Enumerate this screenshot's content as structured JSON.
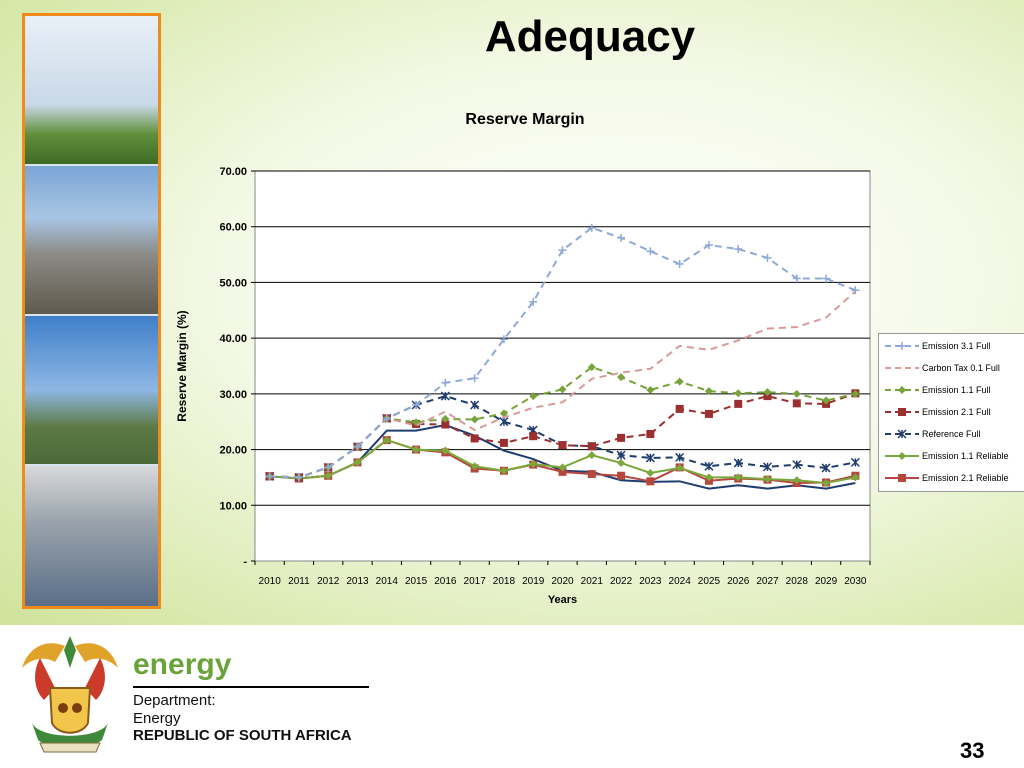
{
  "slide": {
    "title": "Adequacy",
    "page_number": "33"
  },
  "logo": {
    "brand": "energy",
    "department_label": "Department:",
    "department_name": "Energy",
    "country": "REPUBLIC OF SOUTH AFRICA"
  },
  "colors": {
    "emission31": "#8ea9d8",
    "carbontax": "#d99a9a",
    "emission11full": "#77a33a",
    "emission21full": "#9c2f2f",
    "reference": "#1f3d6e",
    "emission11rel": "#7aa83a",
    "emission21rel": "#b5473f",
    "frame_orange": "#f08a1c"
  },
  "chart_data": {
    "type": "line",
    "title": "Reserve Margin",
    "xlabel": "Years",
    "ylabel": "Reserve Margin (%)",
    "ylim": [
      0,
      70
    ],
    "yticks": [
      "-",
      "10.00",
      "20.00",
      "30.00",
      "40.00",
      "50.00",
      "60.00",
      "70.00"
    ],
    "grid": true,
    "legend_position": "right",
    "categories": [
      "2010",
      "2011",
      "2012",
      "2013",
      "2014",
      "2015",
      "2016",
      "2017",
      "2018",
      "2019",
      "2020",
      "2021",
      "2022",
      "2023",
      "2024",
      "2025",
      "2026",
      "2027",
      "2028",
      "2029",
      "2030"
    ],
    "series": [
      {
        "name": "Emission 3.1 Full",
        "color": "#8ea9d8",
        "dash": "dash",
        "marker": "plus",
        "values": [
          15.2,
          15.0,
          16.8,
          20.5,
          25.6,
          28.0,
          32.0,
          32.8,
          39.8,
          46.5,
          55.8,
          59.8,
          58.0,
          55.6,
          53.3,
          56.7,
          56.0,
          54.4,
          50.7,
          50.7,
          48.6
        ]
      },
      {
        "name": "Carbon Tax 0.1 Full",
        "color": "#d99a9a",
        "dash": "dash",
        "marker": "none",
        "values": [
          15.2,
          15.0,
          16.8,
          20.5,
          25.6,
          24.3,
          26.8,
          23.5,
          25.8,
          27.5,
          28.5,
          32.7,
          33.8,
          34.5,
          38.6,
          37.9,
          39.6,
          41.7,
          42.0,
          43.7,
          48.4
        ]
      },
      {
        "name": "Emission 1.1 Full",
        "color": "#77a33a",
        "dash": "dash",
        "marker": "diamond",
        "values": [
          15.2,
          15.0,
          16.8,
          20.5,
          25.6,
          24.9,
          25.5,
          25.4,
          26.5,
          29.6,
          30.8,
          34.8,
          33.0,
          30.7,
          32.2,
          30.5,
          30.1,
          30.3,
          30.0,
          28.8,
          30.0
        ]
      },
      {
        "name": "Emission 2.1 Full",
        "color": "#9c2f2f",
        "dash": "dash",
        "marker": "square",
        "values": [
          15.2,
          15.0,
          16.8,
          20.5,
          25.6,
          24.6,
          24.5,
          22.0,
          21.2,
          22.4,
          20.8,
          20.6,
          22.1,
          22.8,
          27.3,
          26.4,
          28.2,
          29.6,
          28.3,
          28.2,
          30.1
        ]
      },
      {
        "name": "Reference Full",
        "color": "#1f3d6e",
        "dash": "dash",
        "marker": "star",
        "values": [
          15.2,
          15.0,
          16.8,
          20.5,
          25.6,
          28.0,
          29.6,
          28.0,
          25.0,
          23.5,
          20.8,
          20.6,
          19.0,
          18.5,
          18.6,
          17.0,
          17.6,
          16.9,
          17.3,
          16.7,
          17.7
        ]
      },
      {
        "name": "Emission 1.1 Reliable",
        "color": "#7aa83a",
        "dash": "solid",
        "marker": "diamond",
        "values": [
          15.2,
          14.8,
          15.3,
          17.7,
          21.7,
          20.0,
          19.8,
          17.0,
          16.2,
          17.4,
          16.8,
          19.0,
          17.6,
          15.8,
          16.7,
          15.0,
          15.0,
          14.7,
          14.5,
          14.0,
          15.0
        ]
      },
      {
        "name": "Emission 2.1 Reliable",
        "color": "#b5473f",
        "dash": "solid",
        "marker": "square",
        "values": [
          15.2,
          14.8,
          15.3,
          17.7,
          21.7,
          20.0,
          19.5,
          16.6,
          16.2,
          17.3,
          16.0,
          15.6,
          15.3,
          14.3,
          16.8,
          14.4,
          14.8,
          14.6,
          14.0,
          14.1,
          15.3
        ]
      },
      {
        "name": "",
        "color": "#1f3d6e",
        "dash": "solid",
        "marker": "none",
        "values": [
          15.2,
          14.8,
          15.3,
          17.7,
          23.4,
          23.4,
          24.4,
          22.5,
          19.8,
          18.3,
          16.2,
          16.0,
          14.5,
          14.2,
          14.3,
          13.0,
          13.6,
          13.0,
          13.6,
          13.0,
          14.0
        ]
      }
    ]
  }
}
